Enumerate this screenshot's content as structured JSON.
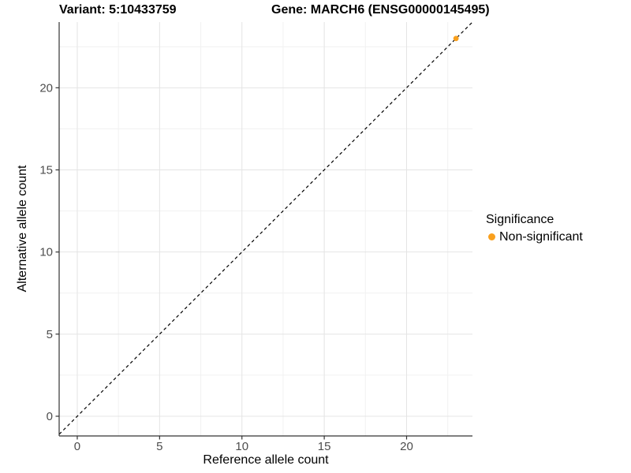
{
  "figure": {
    "title_left": "Variant: 5:10433759",
    "title_right": "Gene: MARCH6 (ENSG00000145495)"
  },
  "axes": {
    "x_label": "Reference allele count",
    "y_label": "Alternative allele count"
  },
  "legend": {
    "title": "Significance",
    "items": [
      {
        "label": "Non-significant",
        "color": "#F9A01E"
      }
    ]
  },
  "colors": {
    "point": "#F9A01E",
    "axis_line": "#333333",
    "tick_text": "#4D4D4D",
    "grid_major": "#E4E4E4",
    "grid_minor": "#F1F1F1",
    "reference_line": "#000000",
    "background": "#FFFFFF"
  },
  "chart_data": {
    "type": "scatter",
    "title": "Variant: 5:10433759 | Gene: MARCH6 (ENSG00000145495)",
    "xlabel": "Reference allele count",
    "ylabel": "Alternative allele count",
    "xlim": [
      -1.1,
      24
    ],
    "ylim": [
      -1.2,
      24
    ],
    "x_ticks": [
      0,
      5,
      10,
      15,
      20
    ],
    "y_ticks": [
      0,
      5,
      10,
      15,
      20
    ],
    "x_minor_ticks": [
      2.5,
      7.5,
      12.5,
      17.5,
      22.5
    ],
    "y_minor_ticks": [
      2.5,
      7.5,
      12.5,
      17.5,
      22.5
    ],
    "grid": true,
    "series": [
      {
        "name": "Non-significant",
        "color": "#F9A01E",
        "points": [
          {
            "x": 23,
            "y": 23
          }
        ]
      }
    ],
    "reference_line": {
      "type": "abline",
      "slope": 1,
      "intercept": 0,
      "style": "dashed"
    },
    "legend_title": "Significance",
    "legend_position": "right"
  }
}
